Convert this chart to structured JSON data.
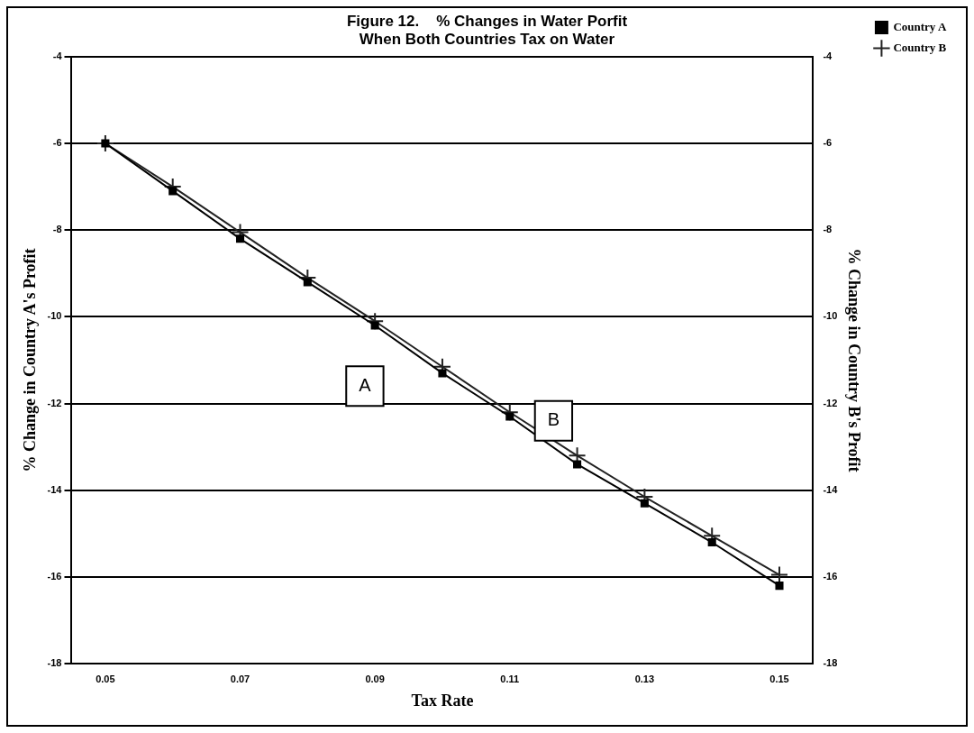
{
  "chart_data": {
    "type": "line",
    "title": "Figure 12.    % Changes in Water Porfit",
    "subtitle": "When Both Countries Tax on Water",
    "xlabel": "Tax Rate",
    "ylabel": "% Change in Country A's Profit",
    "y2label": "% Change in Country B's Profit",
    "x": [
      0.05,
      0.06,
      0.07,
      0.08,
      0.09,
      0.1,
      0.11,
      0.12,
      0.13,
      0.14,
      0.15
    ],
    "series": [
      {
        "name": "Country A",
        "color": "#000000",
        "marker": "square",
        "values": [
          -6.0,
          -7.1,
          -8.2,
          -9.2,
          -10.2,
          -11.3,
          -12.3,
          -13.4,
          -14.3,
          -15.2,
          -16.2
        ]
      },
      {
        "name": "Country B",
        "color": "#222222",
        "marker": "cross",
        "axis": "y2",
        "values": [
          -6.0,
          -7.0,
          -8.05,
          -9.1,
          -10.1,
          -11.15,
          -12.2,
          -13.2,
          -14.15,
          -15.05,
          -15.95
        ]
      }
    ],
    "xlim": [
      0.045,
      0.155
    ],
    "xticks": [
      0.05,
      0.07,
      0.09,
      0.11,
      0.13,
      0.15
    ],
    "ylim": [
      -18,
      -4
    ],
    "yticks": [
      -18,
      -16,
      -14,
      -12,
      -10,
      -8,
      -6,
      -4
    ],
    "y2lim": [
      -18,
      -4
    ],
    "y2ticks": [
      -18,
      -16,
      -14,
      -12,
      -10,
      -8,
      -6,
      -4
    ],
    "annotations": [
      {
        "text": "A",
        "x": 0.0885,
        "y": -11.6
      },
      {
        "text": "B",
        "x": 0.1165,
        "y": -12.4
      }
    ],
    "grid": "y",
    "legend": "right",
    "line_style": "solid"
  }
}
